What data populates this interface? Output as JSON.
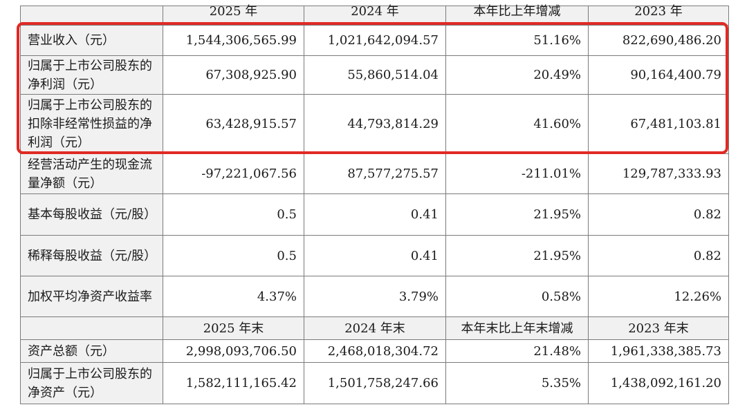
{
  "header1": [
    "2025 年",
    "2024 年",
    "本年比上年增减",
    "2023 年"
  ],
  "rows1": [
    {
      "label": "营业收入（元）",
      "values": [
        "1,544,306,565.99",
        "1,021,642,094.57",
        "51.16%",
        "822,690,486.20"
      ]
    },
    {
      "label": "归属于上市公司股东的净利润（元）",
      "values": [
        "67,308,925.90",
        "55,860,514.04",
        "20.49%",
        "90,164,400.79"
      ]
    },
    {
      "label": "归属于上市公司股东的扣除非经常性损益的净利润（元）",
      "values": [
        "63,428,915.57",
        "44,793,814.29",
        "41.60%",
        "67,481,103.81"
      ]
    },
    {
      "label": "经营活动产生的现金流量净额（元）",
      "values": [
        "-97,221,067.56",
        "87,577,275.57",
        "-211.01%",
        "129,787,333.93"
      ]
    },
    {
      "label": "基本每股收益（元/股）",
      "values": [
        "0.5",
        "0.41",
        "21.95%",
        "0.82"
      ]
    },
    {
      "label": "稀释每股收益（元/股）",
      "values": [
        "0.5",
        "0.41",
        "21.95%",
        "0.82"
      ]
    },
    {
      "label": "加权平均净资产收益率",
      "values": [
        "4.37%",
        "3.79%",
        "0.58%",
        "12.26%"
      ]
    }
  ],
  "header2": [
    "2025 年末",
    "2024 年末",
    "本年末比上年末增减",
    "2023 年末"
  ],
  "rows2": [
    {
      "label": "资产总额（元）",
      "values": [
        "2,998,093,706.50",
        "2,468,018,304.72",
        "21.48%",
        "1,961,338,385.73"
      ]
    },
    {
      "label": "归属于上市公司股东的净资产（元）",
      "values": [
        "1,582,111,165.42",
        "1,501,758,247.66",
        "5.35%",
        "1,438,092,161.20"
      ]
    }
  ]
}
